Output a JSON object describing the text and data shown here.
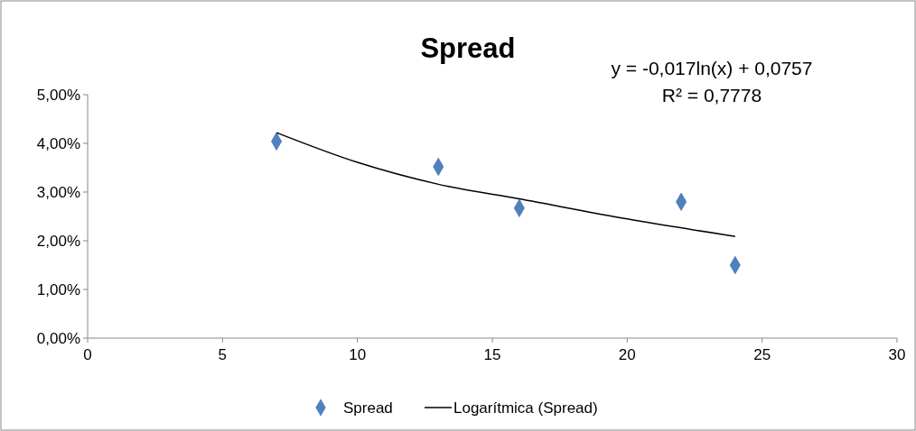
{
  "chart_data": {
    "type": "scatter",
    "title": "Spread",
    "annotations": [
      "y = -0,017ln(x) + 0,0757",
      "R² = 0,7778"
    ],
    "series": [
      {
        "name": "Spread",
        "color": "#4f81bd",
        "marker": "diamond",
        "x": [
          7,
          13,
          16,
          22,
          24
        ],
        "values": [
          0.0404,
          0.0352,
          0.0267,
          0.028,
          0.015
        ]
      },
      {
        "name": "Logarítmica (Spread)",
        "type": "line",
        "color": "#000000",
        "marker": "none",
        "line_style": "solid",
        "x": [
          7,
          10,
          13,
          16,
          20,
          24
        ],
        "values": [
          0.0422,
          0.0361,
          0.0316,
          0.0286,
          0.0245,
          0.0209
        ]
      }
    ],
    "xlim": [
      0,
      30
    ],
    "xticks": [
      0,
      5,
      10,
      15,
      20,
      25,
      30
    ],
    "ylim": [
      0,
      0.05
    ],
    "yticks": [
      {
        "value": 0,
        "label": "0,00%"
      },
      {
        "value": 0.01,
        "label": "1,00%"
      },
      {
        "value": 0.02,
        "label": "2,00%"
      },
      {
        "value": 0.03,
        "label": "3,00%"
      },
      {
        "value": 0.04,
        "label": "4,00%"
      },
      {
        "value": 0.05,
        "label": "5,00%"
      }
    ],
    "grid": false,
    "legend": "bottom"
  }
}
